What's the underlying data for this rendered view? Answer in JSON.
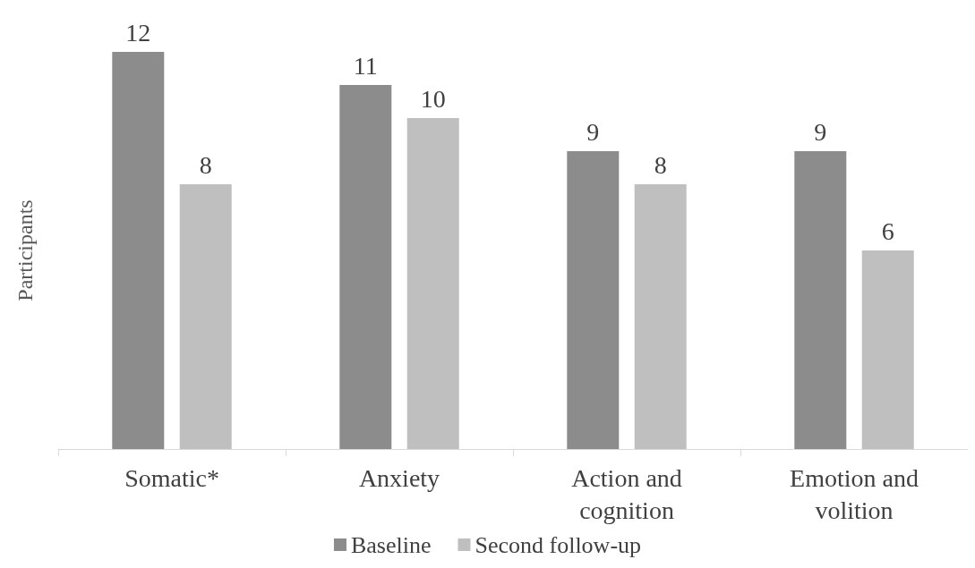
{
  "chart_data": {
    "type": "bar",
    "ylabel": "Participants",
    "categories": [
      "Somatic*",
      "Anxiety",
      "Action and\ncognition",
      "Emotion and\nvolition"
    ],
    "series": [
      {
        "name": "Baseline",
        "color": "#8c8c8c",
        "values": [
          12,
          11,
          9,
          9
        ]
      },
      {
        "name": "Second follow-up",
        "color": "#bfbfbf",
        "values": [
          8,
          10,
          8,
          6
        ]
      }
    ],
    "data_labels": true,
    "grid": false,
    "legend": "bottom"
  }
}
